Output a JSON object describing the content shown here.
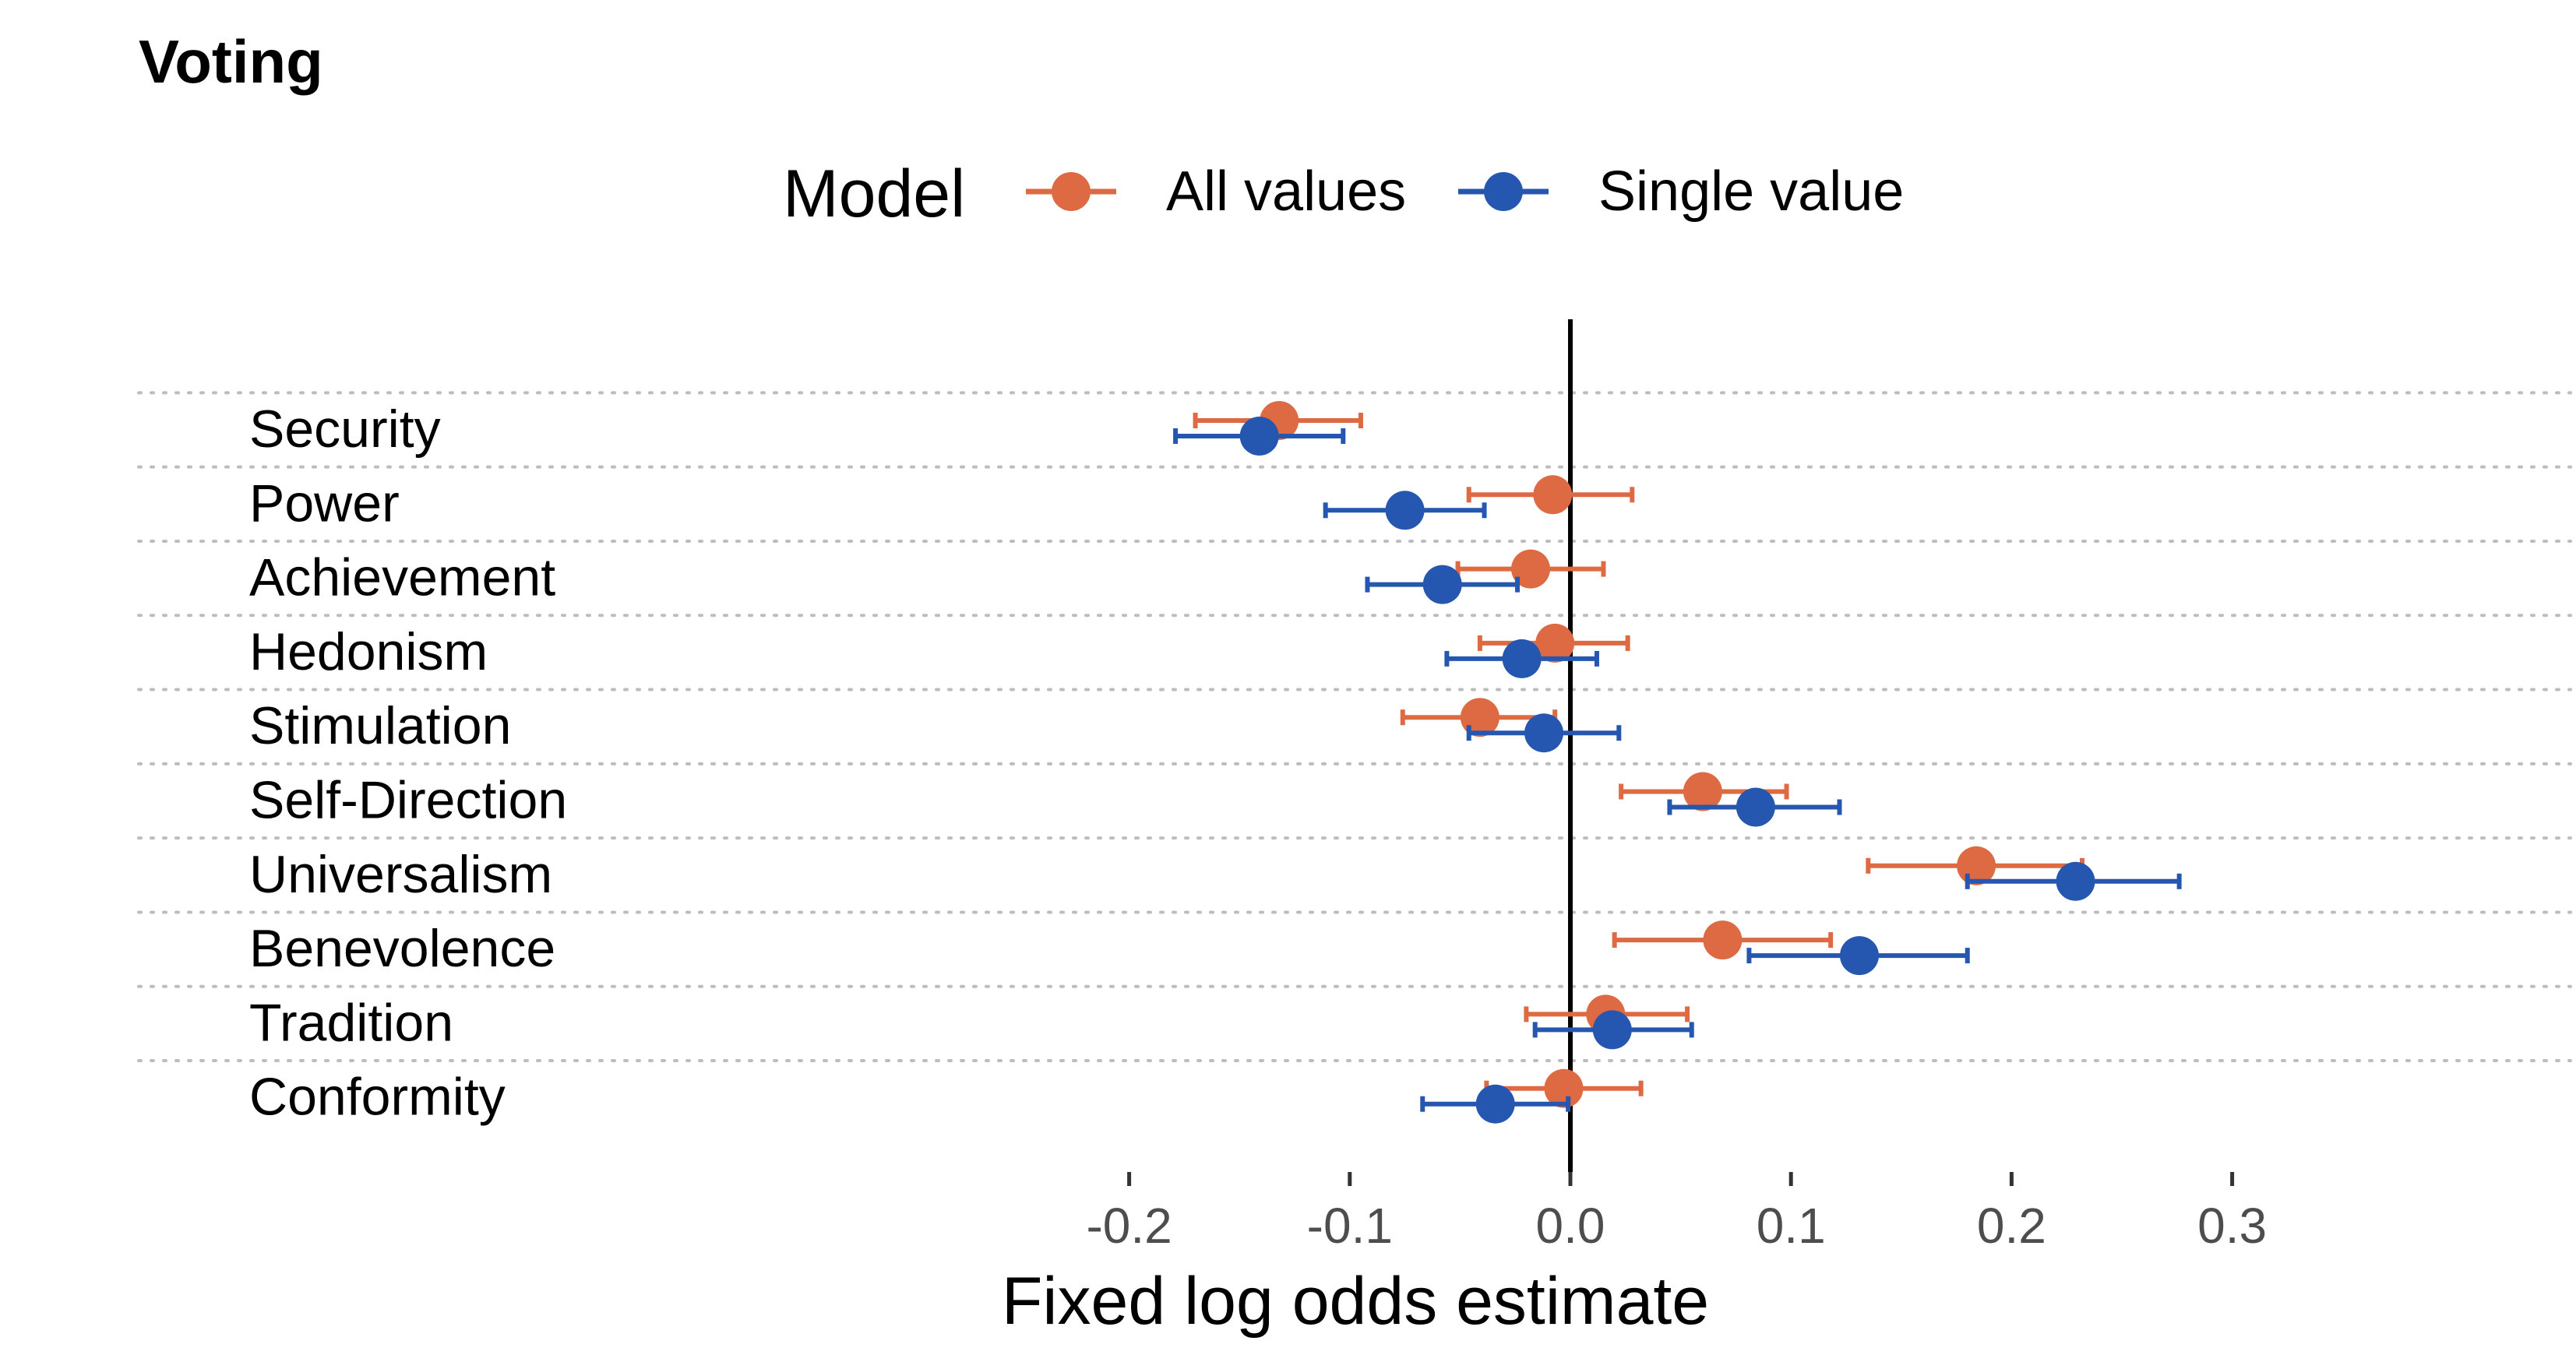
{
  "chart_data": {
    "type": "dot-errorbar",
    "title": "Voting",
    "xlabel": "Fixed log odds estimate",
    "ylabel": "",
    "xlim": [
      -0.405,
      0.39
    ],
    "x_ticks": [
      -0.2,
      -0.1,
      0.0,
      0.1,
      0.2,
      0.3
    ],
    "x_tick_labels": [
      "-0.2",
      "-0.1",
      "0.0",
      "0.1",
      "0.2",
      "0.3"
    ],
    "reference_line": 0,
    "grid": "dotted horizontal separators",
    "legend": {
      "title": "Model",
      "placement": "top-center"
    },
    "categories": [
      "Security",
      "Power",
      "Achievement",
      "Hedonism",
      "Stimulation",
      "Self-Direction",
      "Universalism",
      "Benevolence",
      "Tradition",
      "Conformity"
    ],
    "series": [
      {
        "name": "All values",
        "color": "#dd6a42",
        "estimate": [
          -0.132,
          -0.008,
          -0.018,
          -0.007,
          -0.041,
          0.06,
          0.184,
          0.069,
          0.016,
          -0.003
        ],
        "lower": [
          -0.17,
          -0.046,
          -0.051,
          -0.041,
          -0.076,
          0.023,
          0.135,
          0.02,
          -0.02,
          -0.038
        ],
        "upper": [
          -0.095,
          0.028,
          0.015,
          0.026,
          -0.007,
          0.098,
          0.232,
          0.118,
          0.053,
          0.032
        ]
      },
      {
        "name": "Single value",
        "color": "#2557b0",
        "estimate": [
          -0.141,
          -0.075,
          -0.058,
          -0.022,
          -0.012,
          0.084,
          0.229,
          0.131,
          0.019,
          -0.034
        ],
        "lower": [
          -0.179,
          -0.111,
          -0.092,
          -0.056,
          -0.046,
          0.045,
          0.18,
          0.081,
          -0.016,
          -0.067
        ],
        "upper": [
          -0.103,
          -0.039,
          -0.024,
          0.012,
          0.022,
          0.122,
          0.276,
          0.18,
          0.055,
          -0.001
        ]
      }
    ]
  }
}
